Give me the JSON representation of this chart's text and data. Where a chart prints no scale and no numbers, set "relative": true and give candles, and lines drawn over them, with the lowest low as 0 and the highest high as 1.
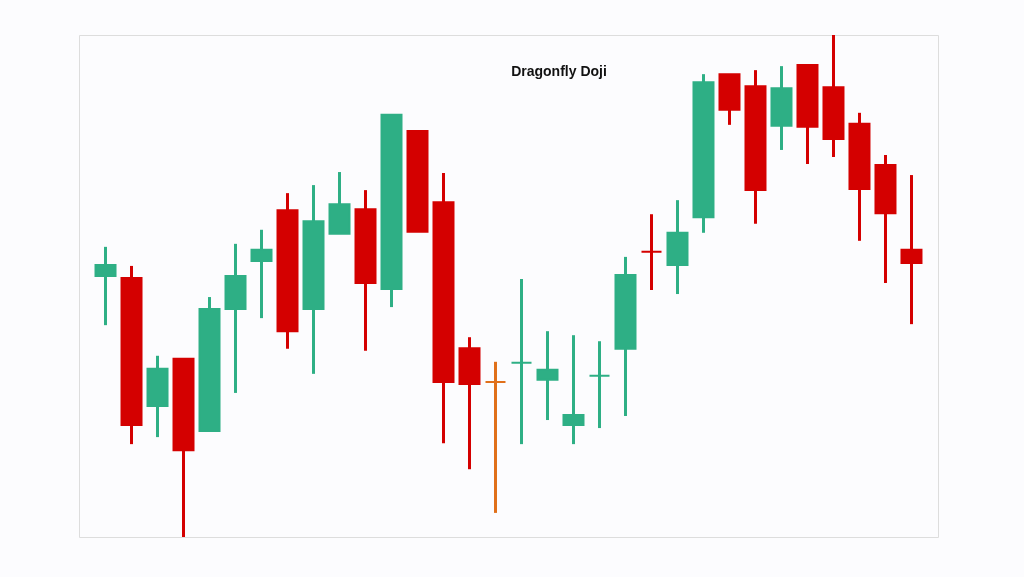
{
  "chart_data": {
    "type": "candlestick",
    "title": "Dragonfly Doji",
    "relative": true,
    "tick_labels": false,
    "grid": false,
    "categories": [
      null,
      null,
      null,
      null,
      null,
      null,
      null,
      null,
      null,
      null,
      null,
      null,
      null,
      null,
      null,
      null,
      null,
      null,
      null,
      null,
      null,
      null,
      null,
      null,
      null,
      null,
      null,
      null,
      null,
      null,
      null,
      null
    ],
    "ohlc": [
      [
        0.52,
        0.578,
        0.422,
        0.542
      ],
      [
        0.516,
        0.54,
        0.185,
        0.223
      ],
      [
        0.261,
        0.361,
        0.199,
        0.335
      ],
      [
        0.355,
        0.355,
        0,
        0.173
      ],
      [
        0.211,
        0.478,
        0.211,
        0.454
      ],
      [
        0.454,
        0.584,
        0.287,
        0.52
      ],
      [
        0.55,
        0.612,
        0.436,
        0.572
      ],
      [
        0.651,
        0.685,
        0.375,
        0.41
      ],
      [
        0.454,
        0.701,
        0.325,
        0.629
      ],
      [
        0.604,
        0.727,
        0.604,
        0.663
      ],
      [
        0.653,
        0.691,
        0.371,
        0.506
      ],
      [
        0.494,
        0.841,
        0.458,
        0.841
      ],
      [
        0.809,
        0.809,
        0.608,
        0.608
      ],
      [
        0.667,
        0.725,
        0.187,
        0.309
      ],
      [
        0.376,
        0.398,
        0.135,
        0.305
      ],
      [
        0.309,
        0.349,
        0.048,
        0.309
      ],
      [
        0.347,
        0.514,
        0.185,
        0.347
      ],
      [
        0.313,
        0.41,
        0.233,
        0.333
      ],
      [
        0.223,
        0.402,
        0.185,
        0.243
      ],
      [
        0.321,
        0.39,
        0.217,
        0.321
      ],
      [
        0.375,
        0.558,
        0.241,
        0.522
      ],
      [
        0.568,
        0.643,
        0.492,
        0.568
      ],
      [
        0.542,
        0.671,
        0.484,
        0.606
      ],
      [
        0.637,
        0.922,
        0.606,
        0.906
      ],
      [
        0.922,
        0.922,
        0.821,
        0.851
      ],
      [
        0.898,
        0.93,
        0.624,
        0.691
      ],
      [
        0.819,
        0.938,
        0.771,
        0.894
      ],
      [
        0.94,
        0.94,
        0.743,
        0.817
      ],
      [
        0.896,
        1,
        0.757,
        0.793
      ],
      [
        0.823,
        0.845,
        0.59,
        0.693
      ],
      [
        0.741,
        0.761,
        0.506,
        0.645
      ],
      [
        0.572,
        0.721,
        0.424,
        0.546
      ]
    ],
    "colors": [
      "#2eaf85",
      "#d40000",
      "#2eaf85",
      "#d40000",
      "#2eaf85",
      "#2eaf85",
      "#2eaf85",
      "#d40000",
      "#2eaf85",
      "#2eaf85",
      "#d40000",
      "#2eaf85",
      "#d40000",
      "#d40000",
      "#d40000",
      "#e0701a",
      "#2eaf85",
      "#2eaf85",
      "#2eaf85",
      "#2eaf85",
      "#2eaf85",
      "#d40000",
      "#2eaf85",
      "#2eaf85",
      "#d40000",
      "#d40000",
      "#2eaf85",
      "#d40000",
      "#d40000",
      "#d40000",
      "#d40000",
      "#d40000"
    ]
  }
}
